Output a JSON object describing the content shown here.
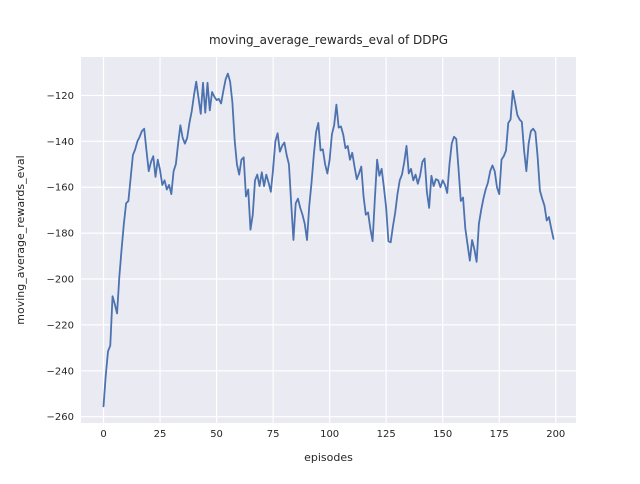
{
  "chart_data": {
    "type": "line",
    "title": "moving_average_rewards_eval of DDPG",
    "xlabel": "episodes",
    "ylabel": "moving_average_rewards_eval",
    "x_ticks": [
      0,
      25,
      50,
      75,
      100,
      125,
      150,
      175,
      200
    ],
    "x_tick_labels": [
      "0",
      "25",
      "50",
      "75",
      "100",
      "125",
      "150",
      "175",
      "200"
    ],
    "y_ticks": [
      -120,
      -140,
      -160,
      -180,
      -200,
      -220,
      -240,
      -260
    ],
    "y_tick_labels": [
      "−120",
      "−140",
      "−160",
      "−180",
      "−200",
      "−220",
      "−240",
      "−260"
    ],
    "xlim": [
      -9.95,
      208.95
    ],
    "ylim": [
      -262.75,
      -103.25
    ],
    "grid": true,
    "legend_position": "none",
    "background": "#EAEAF2",
    "grid_color": "#FFFFFF",
    "line_color": "#4C72B0",
    "text_color": "#262626",
    "x_start": 0,
    "x_step": 1,
    "series": [
      {
        "name": "moving_average_rewards_eval",
        "values": [
          -255.5,
          -242,
          -231.5,
          -229,
          -207.5,
          -211,
          -215,
          -199,
          -187,
          -176,
          -167,
          -166,
          -156,
          -146,
          -143.5,
          -140,
          -138,
          -135.5,
          -134.5,
          -144,
          -153,
          -149,
          -146.5,
          -155.5,
          -148,
          -152.5,
          -159,
          -157,
          -161,
          -159,
          -163,
          -153,
          -150,
          -141,
          -133,
          -138.5,
          -141,
          -138.5,
          -132,
          -127,
          -120,
          -114,
          -121,
          -128,
          -114.5,
          -127.5,
          -114.5,
          -126.5,
          -118.5,
          -120.5,
          -122,
          -121.5,
          -123.5,
          -118,
          -113,
          -110.5,
          -114,
          -123,
          -139.5,
          -150,
          -154.5,
          -148,
          -147,
          -164,
          -161,
          -178.5,
          -172,
          -157,
          -154.5,
          -159.5,
          -153.5,
          -159.5,
          -154.5,
          -158,
          -162,
          -152,
          -140,
          -136.5,
          -144.5,
          -142,
          -140.5,
          -146,
          -150,
          -167,
          -183,
          -167,
          -165,
          -169,
          -172,
          -176,
          -183,
          -168,
          -158,
          -146,
          -136,
          -132,
          -144,
          -143.5,
          -150,
          -154,
          -148,
          -137,
          -133,
          -124,
          -134,
          -133.5,
          -137,
          -143,
          -142,
          -148,
          -145,
          -151,
          -156.5,
          -154,
          -151,
          -164,
          -172,
          -171,
          -178,
          -183.5,
          -165,
          -148,
          -155,
          -152,
          -160,
          -169,
          -183.5,
          -184,
          -177,
          -171,
          -163,
          -157,
          -154.5,
          -149,
          -142,
          -154,
          -152,
          -157,
          -154.5,
          -158.5,
          -155,
          -149,
          -147.5,
          -162,
          -169,
          -155,
          -159.5,
          -156.5,
          -157,
          -160,
          -157,
          -159,
          -162.5,
          -150,
          -141,
          -138,
          -139,
          -152,
          -166,
          -164.5,
          -178,
          -185,
          -192,
          -183,
          -187,
          -192.5,
          -176,
          -170,
          -165,
          -161,
          -158,
          -153,
          -150.5,
          -153,
          -160,
          -163,
          -148,
          -146.5,
          -144,
          -132,
          -130.5,
          -118,
          -123,
          -128.5,
          -130.5,
          -131.5,
          -144,
          -153,
          -141,
          -135.5,
          -134.5,
          -136,
          -147,
          -161.5,
          -165,
          -168,
          -174.5,
          -173,
          -178,
          -182.5
        ]
      }
    ]
  }
}
